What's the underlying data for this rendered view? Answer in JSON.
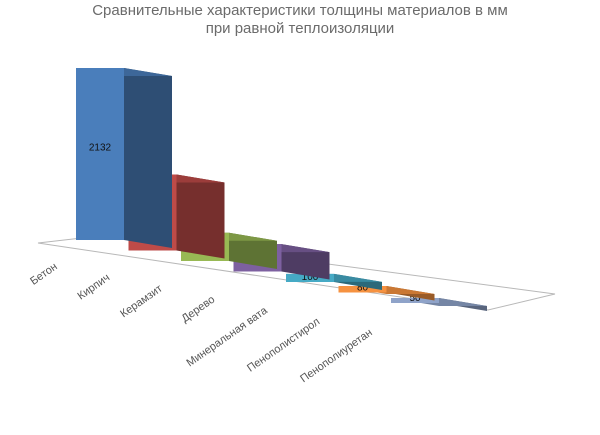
{
  "chart_data": {
    "type": "bar",
    "variant": "3d-column",
    "title_line1": "Сравнительные характеристики толщины материалов в мм",
    "title_line2": "при равной теплоизоляции",
    "categories": [
      "Бетон",
      "Кирпич",
      "Керамзит",
      "Дерево",
      "Минеральная вата",
      "Пенополистирол",
      "Пенополиуретан"
    ],
    "values": [
      2132,
      942,
      350,
      340,
      100,
      80,
      50
    ],
    "colors": [
      "#4a7ebb",
      "#be4b48",
      "#98b954",
      "#7d60a0",
      "#46aac5",
      "#f69240",
      "#8fa3c9"
    ],
    "grid": false,
    "legend": "none"
  }
}
